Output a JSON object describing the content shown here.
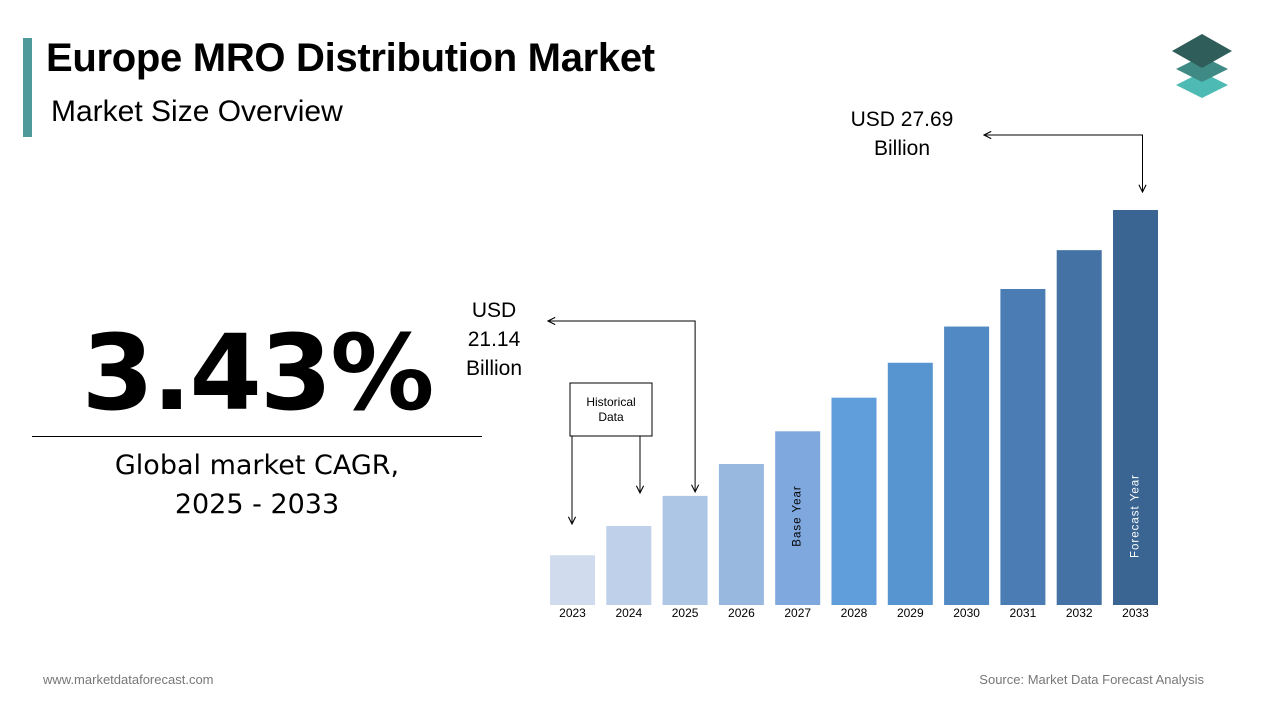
{
  "header": {
    "title": "Europe MRO Distribution Market",
    "subtitle": "Market Size Overview"
  },
  "logo": {
    "icon": "stacked-layers-icon",
    "colors": [
      "#2f5d5a",
      "#3f8a85",
      "#4dbab3"
    ]
  },
  "cagr": {
    "value": "3.43%",
    "label_line1": "Global market CAGR,",
    "label_line2": "2025 - 2033"
  },
  "chart_data": {
    "type": "bar",
    "title": "",
    "xlabel": "",
    "ylabel": "",
    "categories": [
      "2023",
      "2024",
      "2025",
      "2026",
      "2027",
      "2028",
      "2029",
      "2030",
      "2031",
      "2032",
      "2033"
    ],
    "values": [
      19.78,
      20.45,
      21.14,
      21.87,
      22.62,
      23.39,
      24.19,
      25.02,
      25.88,
      26.77,
      27.69
    ],
    "colors": [
      "#d0dcee",
      "#bfd1ea",
      "#adc6e6",
      "#98b8e0",
      "#7fa8de",
      "#5f9ddb",
      "#5695d0",
      "#5089c3",
      "#4b7db4",
      "#4472a4",
      "#3a6492"
    ],
    "ylim": [
      18.64,
      27.69
    ],
    "grid": false,
    "legend": "none",
    "bar_labels": {
      "2027": "Base Year",
      "2033": "Forecast Year"
    },
    "annotations": {
      "historical": [
        "Historical",
        "Data"
      ],
      "callout_2025": [
        "USD",
        "21.14",
        "Billion"
      ],
      "callout_2033": [
        "USD 27.69",
        "Billion"
      ]
    }
  },
  "footer": {
    "website": "www.marketdataforecast.com",
    "source": "Source: Market Data Forecast Analysis"
  }
}
